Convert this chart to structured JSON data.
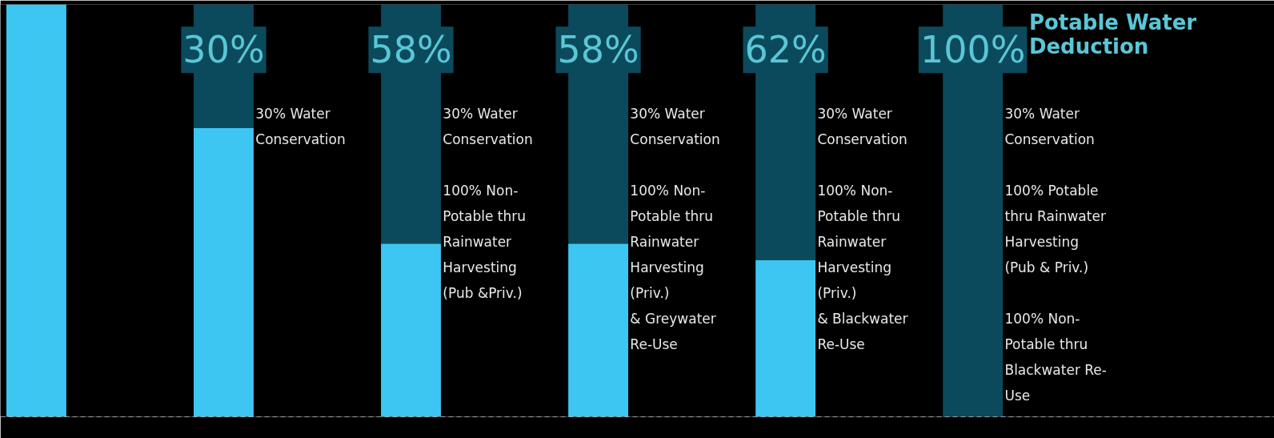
{
  "chart_data": {
    "type": "bar",
    "stacked": true,
    "ylim": [
      0,
      100
    ],
    "tick_labels": false,
    "categories": [
      null,
      null,
      null,
      null,
      null,
      null
    ],
    "series": [
      {
        "color": "#3ec6f2",
        "values": [
          100,
          70,
          42,
          42,
          38,
          0
        ]
      },
      {
        "color": "#0b4a5c",
        "values": [
          0,
          30,
          58,
          58,
          62,
          100
        ],
        "value_labels": [
          null,
          "30%",
          "58%",
          "58%",
          "62%",
          "100%"
        ]
      }
    ],
    "annotations": [
      "Potable Water\nDeduction",
      "30% Water\nConservation",
      "30% Water\nConservation\n\n100% Non-\nPotable thru\nRainwater\nHarvesting\n(Pub &Priv.)",
      "30% Water\nConservation\n\n100% Non-\nPotable thru\nRainwater\nHarvesting\n(Priv.)\n& Greywater\nRe-Use",
      "30% Water\nConservation\n\n100% Non-\nPotable thru\nRainwater\nHarvesting\n(Priv.)\n& Blackwater\nRe-Use",
      "30% Water\nConservation\n\n100% Potable\nthru Rainwater\nHarvesting\n(Pub & Priv.)\n\n100% Non-\nPotable thru\nBlackwater Re-\nUse"
    ],
    "ref_lines": [
      {
        "axis": "y",
        "value": 0,
        "color": "#ffffff",
        "line_style": "dashed"
      }
    ],
    "grid": false
  }
}
